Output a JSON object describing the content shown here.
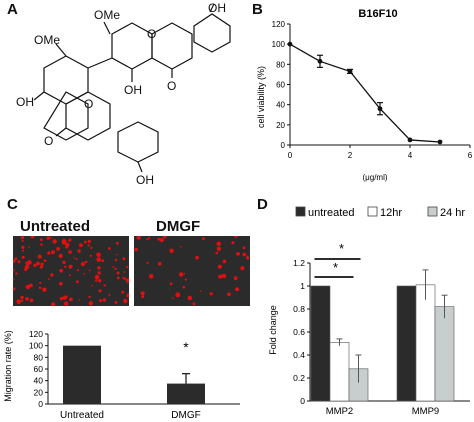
{
  "panel_labels": {
    "a": "A",
    "b": "B",
    "c": "C",
    "d": "D"
  },
  "structure": {
    "labels": [
      "OMe",
      "OMe",
      "OH",
      "OH",
      "OH",
      "OH",
      "O",
      "O",
      "O",
      "O"
    ]
  },
  "micro_labels": {
    "untreated": "Untreated",
    "dmgf": "DMGF"
  },
  "colors": {
    "dark": "#2b2b2b",
    "white": "#ffffff",
    "light": "#c8cece",
    "cell_red": "#e01010"
  },
  "chart_data": [
    {
      "id": "B",
      "type": "line",
      "title": "B16F10",
      "xlabel": "(μg/ml)",
      "ylabel": "cell viability (%)",
      "xlim": [
        0,
        6
      ],
      "ylim": [
        0,
        120
      ],
      "xticks": [
        "0",
        "2",
        "4",
        "6"
      ],
      "yticks": [
        "0",
        "20",
        "40",
        "60",
        "80",
        "100",
        "120"
      ],
      "x": [
        0,
        1,
        2,
        3,
        4,
        5
      ],
      "y": [
        100,
        83,
        73,
        36,
        5,
        3
      ],
      "err": [
        0,
        6,
        2,
        6,
        0,
        0
      ]
    },
    {
      "id": "C",
      "type": "bar",
      "categories": [
        "Untreated",
        "DMGF"
      ],
      "values": [
        100,
        35
      ],
      "err": [
        0,
        17
      ],
      "ylabel": "Migration rate (%)",
      "ylim": [
        0,
        120
      ],
      "yticks": [
        "0",
        "20",
        "40",
        "60",
        "80",
        "100",
        "120"
      ],
      "annotation": "*"
    },
    {
      "id": "D",
      "type": "bar",
      "categories": [
        "MMP2",
        "MMP9"
      ],
      "series": [
        {
          "name": "untreated",
          "values": [
            1.0,
            1.0
          ],
          "err": [
            0,
            0
          ]
        },
        {
          "name": "12hr",
          "values": [
            0.51,
            1.01
          ],
          "err": [
            0.03,
            0.13
          ]
        },
        {
          "name": "24 hr",
          "values": [
            0.28,
            0.82
          ],
          "err": [
            0.12,
            0.1
          ]
        }
      ],
      "ylabel": "Fold change",
      "ylim": [
        0,
        1.2
      ],
      "yticks": [
        "0",
        "0.2",
        "0.4",
        "0.6",
        "0.8",
        "1",
        "1.2"
      ],
      "significance": [
        "*",
        "*"
      ]
    }
  ]
}
